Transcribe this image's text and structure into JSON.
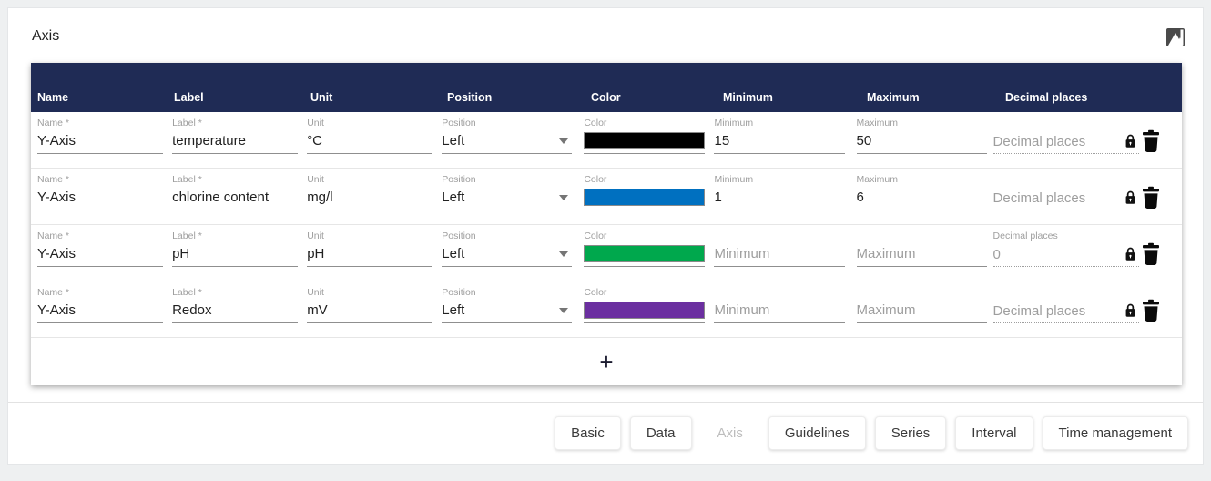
{
  "page": {
    "title": "Axis"
  },
  "colors": {
    "table_header_bg": "#1f2b55",
    "page_bg": "#eef0f1",
    "swatch_row1": "#000000",
    "swatch_row2": "#0070c0",
    "swatch_row3": "#00a84d",
    "swatch_row4": "#6b2fa0"
  },
  "table": {
    "columns": [
      "Name",
      "Label",
      "Unit",
      "Position",
      "Color",
      "Minimum",
      "Maximum",
      "Decimal places"
    ],
    "rows": [
      {
        "name": {
          "label": "Name *",
          "value": "Y-Axis"
        },
        "label": {
          "label": "Label *",
          "value": "temperature"
        },
        "unit": {
          "label": "Unit",
          "value": "°C"
        },
        "position": {
          "label": "Position",
          "value": "Left"
        },
        "color": {
          "label": "Color",
          "value": "#000000"
        },
        "minimum": {
          "label": "Minimum",
          "value": "15",
          "placeholder": "Minimum"
        },
        "maximum": {
          "label": "Maximum",
          "value": "50",
          "placeholder": "Maximum"
        },
        "decimal": {
          "label": "",
          "value": "",
          "placeholder": "Decimal places"
        }
      },
      {
        "name": {
          "label": "Name *",
          "value": "Y-Axis"
        },
        "label": {
          "label": "Label *",
          "value": "chlorine content"
        },
        "unit": {
          "label": "Unit",
          "value": "mg/l"
        },
        "position": {
          "label": "Position",
          "value": "Left"
        },
        "color": {
          "label": "Color",
          "value": "#0070c0"
        },
        "minimum": {
          "label": "Minimum",
          "value": "1",
          "placeholder": "Minimum"
        },
        "maximum": {
          "label": "Maximum",
          "value": "6",
          "placeholder": "Maximum"
        },
        "decimal": {
          "label": "",
          "value": "",
          "placeholder": "Decimal places"
        }
      },
      {
        "name": {
          "label": "Name *",
          "value": "Y-Axis"
        },
        "label": {
          "label": "Label *",
          "value": "pH"
        },
        "unit": {
          "label": "Unit",
          "value": "pH"
        },
        "position": {
          "label": "Position",
          "value": "Left"
        },
        "color": {
          "label": "Color",
          "value": "#00a84d"
        },
        "minimum": {
          "label": "",
          "value": "",
          "placeholder": "Minimum"
        },
        "maximum": {
          "label": "",
          "value": "",
          "placeholder": "Maximum"
        },
        "decimal": {
          "label": "Decimal places",
          "value": "0",
          "placeholder": "Decimal places"
        }
      },
      {
        "name": {
          "label": "Name *",
          "value": "Y-Axis"
        },
        "label": {
          "label": "Label *",
          "value": "Redox"
        },
        "unit": {
          "label": "Unit",
          "value": "mV"
        },
        "position": {
          "label": "Position",
          "value": "Left"
        },
        "color": {
          "label": "Color",
          "value": "#6b2fa0"
        },
        "minimum": {
          "label": "",
          "value": "",
          "placeholder": "Minimum"
        },
        "maximum": {
          "label": "",
          "value": "",
          "placeholder": "Maximum"
        },
        "decimal": {
          "label": "",
          "value": "",
          "placeholder": "Decimal places"
        }
      }
    ],
    "add_label": "+"
  },
  "footer": {
    "buttons": [
      {
        "label": "Basic"
      },
      {
        "label": "Data"
      },
      {
        "label": "Axis",
        "disabled": true
      },
      {
        "label": "Guidelines"
      },
      {
        "label": "Series"
      },
      {
        "label": "Interval"
      },
      {
        "label": "Time management"
      }
    ]
  }
}
